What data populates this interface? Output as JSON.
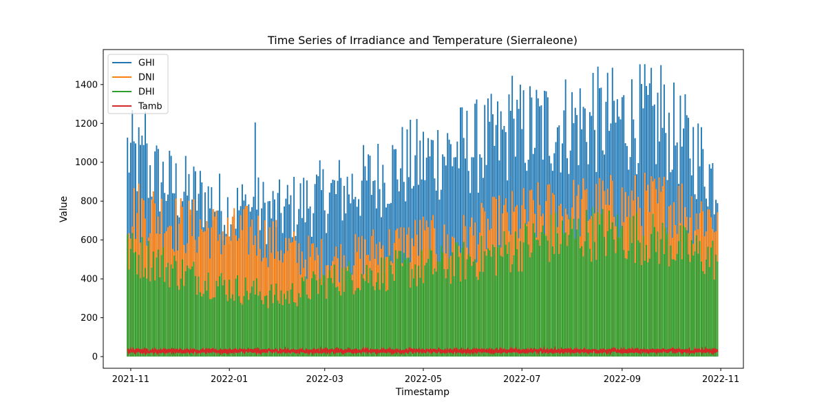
{
  "chart_data": {
    "type": "line",
    "title": "Time Series of Irradiance and Temperature (Sierraleone)",
    "xlabel": "Timestamp",
    "ylabel": "Value",
    "x_range": [
      "2021-10-30",
      "2022-10-30"
    ],
    "xlim": [
      "2021-10-15",
      "2022-11-15"
    ],
    "ylim": [
      -60,
      1580
    ],
    "x_ticks": [
      "2021-11",
      "2022-01",
      "2022-03",
      "2022-05",
      "2022-07",
      "2022-09",
      "2022-11"
    ],
    "y_ticks": [
      0,
      200,
      400,
      600,
      800,
      1000,
      1200,
      1400
    ],
    "legend": "top-left",
    "grid": false,
    "series": [
      {
        "name": "GHI",
        "color": "#1f77b4",
        "daily_peak_envelope": [
          {
            "x": "2021-10-30",
            "y": 1180
          },
          {
            "x": "2021-11-15",
            "y": 1050
          },
          {
            "x": "2021-12-01",
            "y": 960
          },
          {
            "x": "2021-12-15",
            "y": 920
          },
          {
            "x": "2022-01-01",
            "y": 850
          },
          {
            "x": "2022-01-15",
            "y": 860
          },
          {
            "x": "2022-02-01",
            "y": 830
          },
          {
            "x": "2022-02-15",
            "y": 880
          },
          {
            "x": "2022-03-01",
            "y": 930
          },
          {
            "x": "2022-03-15",
            "y": 960
          },
          {
            "x": "2022-04-01",
            "y": 1030
          },
          {
            "x": "2022-04-15",
            "y": 1100
          },
          {
            "x": "2022-05-01",
            "y": 1130
          },
          {
            "x": "2022-05-15",
            "y": 1180
          },
          {
            "x": "2022-06-01",
            "y": 1210
          },
          {
            "x": "2022-06-15",
            "y": 1240
          },
          {
            "x": "2022-07-01",
            "y": 1300
          },
          {
            "x": "2022-07-15",
            "y": 1330
          },
          {
            "x": "2022-08-01",
            "y": 1350
          },
          {
            "x": "2022-08-15",
            "y": 1360
          },
          {
            "x": "2022-09-01",
            "y": 1370
          },
          {
            "x": "2022-09-15",
            "y": 1380
          },
          {
            "x": "2022-10-01",
            "y": 1300
          },
          {
            "x": "2022-10-15",
            "y": 1200
          },
          {
            "x": "2022-10-30",
            "y": 1000
          }
        ],
        "notable_peaks": [
          {
            "x": "2021-11-10",
            "y": 1260
          },
          {
            "x": "2022-01-17",
            "y": 1205
          },
          {
            "x": "2022-06-25",
            "y": 1445
          },
          {
            "x": "2022-08-14",
            "y": 1460
          },
          {
            "x": "2022-09-25",
            "y": 1500
          }
        ]
      },
      {
        "name": "DNI",
        "color": "#ff7f0e",
        "daily_peak_envelope": [
          {
            "x": "2021-10-30",
            "y": 840
          },
          {
            "x": "2021-11-15",
            "y": 830
          },
          {
            "x": "2021-12-01",
            "y": 760
          },
          {
            "x": "2021-12-15",
            "y": 740
          },
          {
            "x": "2022-01-01",
            "y": 700
          },
          {
            "x": "2022-01-15",
            "y": 720
          },
          {
            "x": "2022-02-01",
            "y": 640
          },
          {
            "x": "2022-02-15",
            "y": 580
          },
          {
            "x": "2022-03-01",
            "y": 560
          },
          {
            "x": "2022-03-15",
            "y": 560
          },
          {
            "x": "2022-04-01",
            "y": 620
          },
          {
            "x": "2022-04-15",
            "y": 640
          },
          {
            "x": "2022-05-01",
            "y": 680
          },
          {
            "x": "2022-05-15",
            "y": 640
          },
          {
            "x": "2022-06-01",
            "y": 700
          },
          {
            "x": "2022-06-15",
            "y": 760
          },
          {
            "x": "2022-07-01",
            "y": 800
          },
          {
            "x": "2022-07-15",
            "y": 830
          },
          {
            "x": "2022-08-01",
            "y": 850
          },
          {
            "x": "2022-08-15",
            "y": 860
          },
          {
            "x": "2022-09-01",
            "y": 860
          },
          {
            "x": "2022-09-15",
            "y": 870
          },
          {
            "x": "2022-10-01",
            "y": 880
          },
          {
            "x": "2022-10-15",
            "y": 840
          },
          {
            "x": "2022-10-30",
            "y": 800
          }
        ]
      },
      {
        "name": "DHI",
        "color": "#2ca02c",
        "daily_peak_envelope": [
          {
            "x": "2021-10-30",
            "y": 600
          },
          {
            "x": "2021-11-15",
            "y": 560
          },
          {
            "x": "2021-12-01",
            "y": 490
          },
          {
            "x": "2021-12-15",
            "y": 450
          },
          {
            "x": "2022-01-01",
            "y": 400
          },
          {
            "x": "2022-01-15",
            "y": 380
          },
          {
            "x": "2022-02-01",
            "y": 340
          },
          {
            "x": "2022-02-15",
            "y": 380
          },
          {
            "x": "2022-03-01",
            "y": 430
          },
          {
            "x": "2022-03-15",
            "y": 460
          },
          {
            "x": "2022-04-01",
            "y": 480
          },
          {
            "x": "2022-04-15",
            "y": 500
          },
          {
            "x": "2022-05-01",
            "y": 510
          },
          {
            "x": "2022-05-15",
            "y": 530
          },
          {
            "x": "2022-06-01",
            "y": 560
          },
          {
            "x": "2022-06-15",
            "y": 590
          },
          {
            "x": "2022-07-01",
            "y": 640
          },
          {
            "x": "2022-07-15",
            "y": 680
          },
          {
            "x": "2022-08-01",
            "y": 700
          },
          {
            "x": "2022-08-15",
            "y": 720
          },
          {
            "x": "2022-09-01",
            "y": 700
          },
          {
            "x": "2022-09-15",
            "y": 690
          },
          {
            "x": "2022-10-01",
            "y": 650
          },
          {
            "x": "2022-10-15",
            "y": 600
          },
          {
            "x": "2022-10-30",
            "y": 560
          }
        ]
      },
      {
        "name": "Tamb",
        "color": "#d62728",
        "band": {
          "min": 20,
          "max": 38
        }
      }
    ]
  }
}
